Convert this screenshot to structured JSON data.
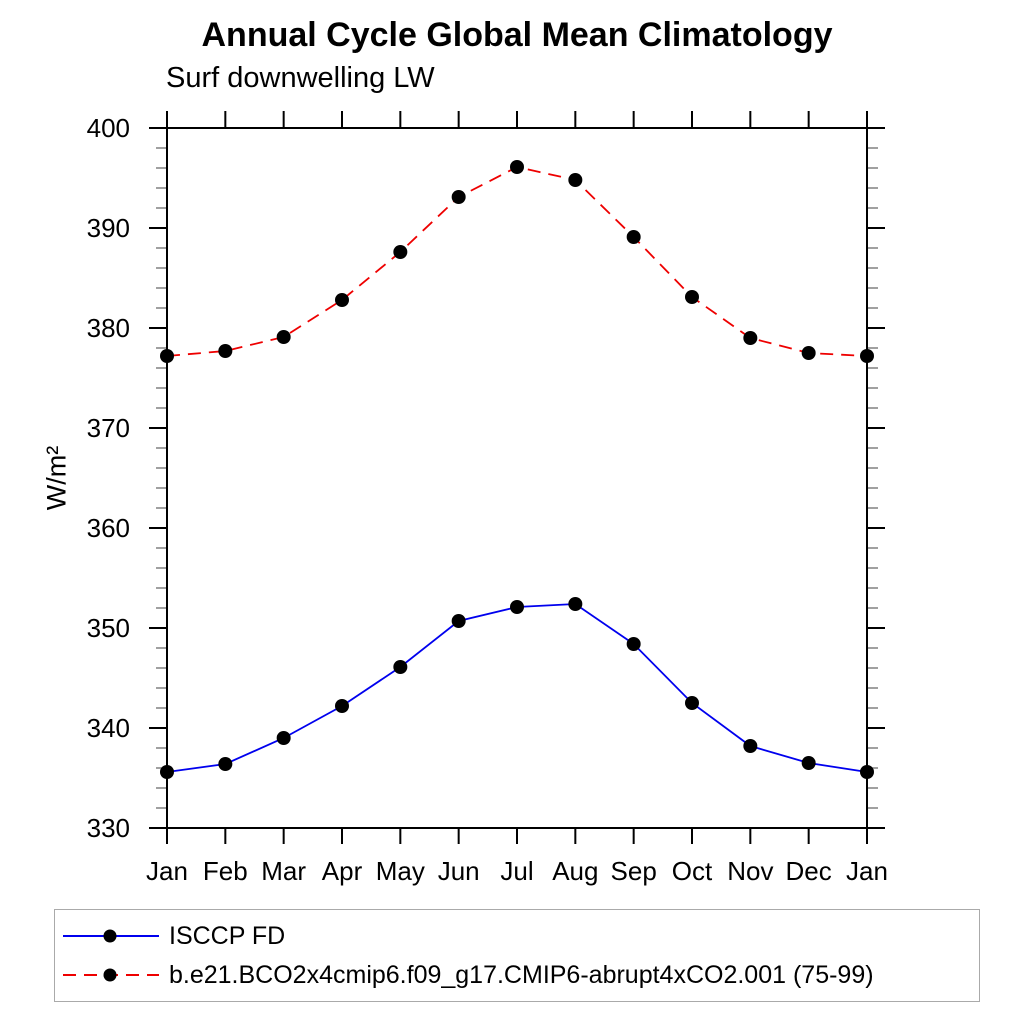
{
  "chart_data": {
    "type": "line",
    "title": "Annual Cycle Global Mean Climatology",
    "subtitle": "Surf downwelling LW",
    "ylabel": "W/m²",
    "categories": [
      "Jan",
      "Feb",
      "Mar",
      "Apr",
      "May",
      "Jun",
      "Jul",
      "Aug",
      "Sep",
      "Oct",
      "Nov",
      "Dec",
      "Jan"
    ],
    "ylim": [
      330,
      400
    ],
    "yticks": [
      330,
      340,
      350,
      360,
      370,
      380,
      390,
      400
    ],
    "ytick_minor_step": 2,
    "grid": "off",
    "legend_position": "bottom-left-box",
    "series": [
      {
        "name": "ISCCP FD",
        "color": "#0000ee",
        "line_style": "solid",
        "marker": "filled-circle",
        "marker_color": "#000000",
        "values": [
          335.6,
          336.4,
          339.0,
          342.2,
          346.1,
          350.7,
          352.1,
          352.4,
          348.4,
          342.5,
          338.2,
          336.5,
          335.6
        ]
      },
      {
        "name": "b.e21.BCO2x4cmip6.f09_g17.CMIP6-abrupt4xCO2.001 (75-99)",
        "color": "#ee0000",
        "line_style": "dashed",
        "marker": "filled-circle",
        "marker_color": "#000000",
        "values": [
          377.2,
          377.7,
          379.1,
          382.8,
          387.6,
          393.1,
          396.1,
          394.8,
          389.1,
          383.1,
          379.0,
          377.5,
          377.2
        ]
      }
    ]
  }
}
